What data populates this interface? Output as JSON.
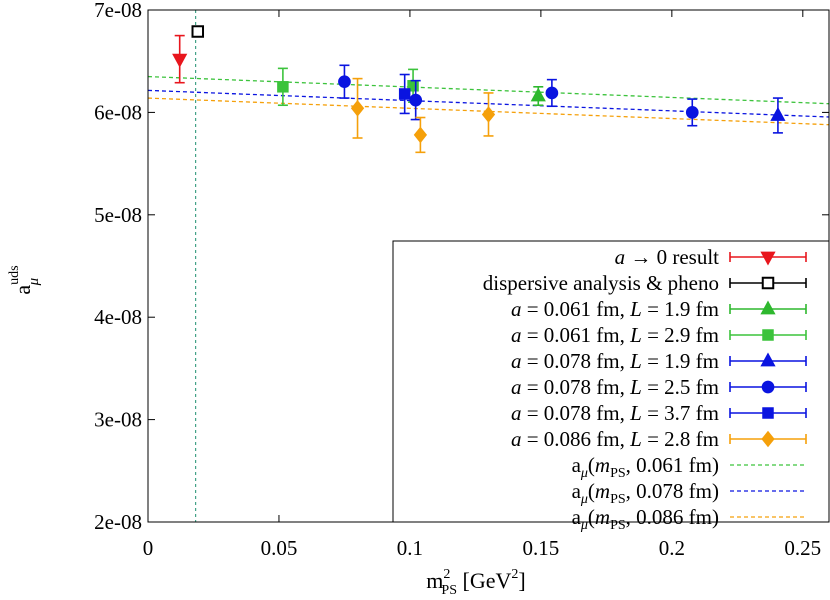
{
  "chart_data": {
    "type": "scatter",
    "title": "",
    "xlabel": {
      "base": "m",
      "sup": "2",
      "sub": "PS",
      "unit": "[GeV",
      "unit_sup": "2",
      "unit_end": "]"
    },
    "ylabel": {
      "base": "a",
      "sup": "uds",
      "sub": "μ"
    },
    "xlim": [
      0,
      0.26
    ],
    "ylim": [
      2e-08,
      7e-08
    ],
    "xticks": [
      {
        "v": 0,
        "label": "0"
      },
      {
        "v": 0.05,
        "label": "0.05"
      },
      {
        "v": 0.1,
        "label": "0.1"
      },
      {
        "v": 0.15,
        "label": "0.15"
      },
      {
        "v": 0.2,
        "label": "0.2"
      },
      {
        "v": 0.25,
        "label": "0.25"
      }
    ],
    "yticks": [
      {
        "v": 2e-08,
        "label": "2e-08"
      },
      {
        "v": 3e-08,
        "label": "3e-08"
      },
      {
        "v": 4e-08,
        "label": "4e-08"
      },
      {
        "v": 5e-08,
        "label": "5e-08"
      },
      {
        "v": 6e-08,
        "label": "6e-08"
      },
      {
        "v": 7e-08,
        "label": "7e-08"
      }
    ],
    "grid": false,
    "legend_position": "bottom-right",
    "vline": {
      "x": 0.0182,
      "color": "#1f8f70"
    },
    "series": [
      {
        "key": "cont",
        "label": [
          "a",
          " → 0 result"
        ],
        "marker": "triangle-down",
        "fill": true,
        "color": "#e8161d",
        "points": [
          {
            "x": 0.0121,
            "y": 6.52e-08,
            "err": 2.3e-09
          }
        ]
      },
      {
        "key": "disp",
        "label": [
          "",
          "dispersive analysis & pheno"
        ],
        "marker": "square",
        "fill": false,
        "color": "#000000",
        "points": [
          {
            "x": 0.019,
            "y": 6.79e-08,
            "err": 3e-10
          }
        ]
      },
      {
        "key": "g19",
        "label": [
          "a",
          " = 0.061 fm, ",
          "L",
          " = 1.9 fm"
        ],
        "marker": "triangle-up",
        "fill": true,
        "color": "#2eb82e",
        "points": [
          {
            "x": 0.149,
            "y": 6.16e-08,
            "err": 9e-10
          }
        ]
      },
      {
        "key": "g29",
        "label": [
          "a",
          " = 0.061 fm, ",
          "L",
          " = 2.9 fm"
        ],
        "marker": "square",
        "fill": true,
        "color": "#3cc33c",
        "points": [
          {
            "x": 0.0515,
            "y": 6.25e-08,
            "err": 1.8e-09
          },
          {
            "x": 0.1012,
            "y": 6.26e-08,
            "err": 1.6e-09
          }
        ]
      },
      {
        "key": "b19",
        "label": [
          "a",
          " = 0.078 fm, ",
          "L",
          " = 1.9 fm"
        ],
        "marker": "triangle-up",
        "fill": true,
        "color": "#0a14e0",
        "points": [
          {
            "x": 0.2405,
            "y": 5.97e-08,
            "err": 1.7e-09
          }
        ]
      },
      {
        "key": "b25",
        "label": [
          "a",
          " = 0.078 fm, ",
          "L",
          " = 2.5 fm"
        ],
        "marker": "circle",
        "fill": true,
        "color": "#0a14e0",
        "points": [
          {
            "x": 0.075,
            "y": 6.3e-08,
            "err": 1.6e-09
          },
          {
            "x": 0.1022,
            "y": 6.12e-08,
            "err": 1.9e-09
          },
          {
            "x": 0.1542,
            "y": 6.19e-08,
            "err": 1.3e-09
          },
          {
            "x": 0.2078,
            "y": 6e-08,
            "err": 1.3e-09
          }
        ]
      },
      {
        "key": "b37",
        "label": [
          "a",
          " = 0.078 fm, ",
          "L",
          " = 3.7 fm"
        ],
        "marker": "square",
        "fill": true,
        "color": "#0a14e0",
        "points": [
          {
            "x": 0.098,
            "y": 6.18e-08,
            "err": 1.9e-09
          }
        ]
      },
      {
        "key": "o28",
        "label": [
          "a",
          " = 0.086 fm, ",
          "L",
          " = 2.8 fm"
        ],
        "marker": "diamond",
        "fill": true,
        "color": "#f5a00a",
        "points": [
          {
            "x": 0.08,
            "y": 6.04e-08,
            "err": 2.9e-09
          },
          {
            "x": 0.104,
            "y": 5.78e-08,
            "err": 1.7e-09
          },
          {
            "x": 0.13,
            "y": 5.98e-08,
            "err": 2.1e-09
          }
        ]
      }
    ],
    "fits": [
      {
        "key": "fit061",
        "label": "0.061 fm",
        "color": "#3cc33c",
        "y0": 6.35e-08,
        "y1": 6.085e-08
      },
      {
        "key": "fit078",
        "label": "0.078 fm",
        "color": "#0a14e0",
        "y0": 6.215e-08,
        "y1": 5.955e-08
      },
      {
        "key": "fit086",
        "label": "0.086 fm",
        "color": "#f5a00a",
        "y0": 6.14e-08,
        "y1": 5.88e-08
      }
    ]
  }
}
